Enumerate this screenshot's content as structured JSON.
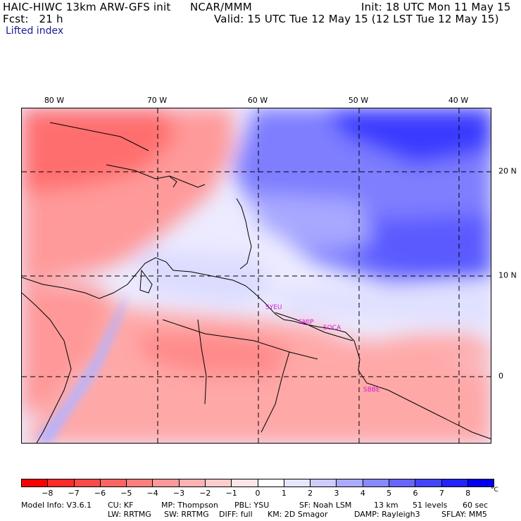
{
  "header": {
    "title": "HAIC-HIWC 13km ARW-GFS init",
    "org": "NCAR/MMM",
    "init": "Init: 18 UTC Mon 11 May 15",
    "fcst": "Fcst:   21 h",
    "valid": "Valid: 15 UTC Tue 12 May 15 (12 LST Tue 12 May 15)",
    "field": "Lifted index"
  },
  "map": {
    "lon_labels": [
      "80 W",
      "70 W",
      "60 W",
      "50 W",
      "40 W"
    ],
    "lat_labels": [
      "20 N",
      "10 N",
      "0"
    ],
    "stations": [
      "SYEU",
      "SMJP",
      "SOCA",
      "SBBE"
    ]
  },
  "colorbar": {
    "labels": [
      "-8",
      "-7",
      "-6",
      "-5",
      "-4",
      "-3",
      "-2",
      "-1",
      "0",
      "1",
      "2",
      "3",
      "4",
      "5",
      "6",
      "7",
      "8"
    ],
    "unit": "°C",
    "colors": [
      "#ff0000",
      "#ff2a2a",
      "#ff4848",
      "#ff6464",
      "#ff7e7e",
      "#ff9898",
      "#ffb2b2",
      "#ffcccc",
      "#ffe6e6",
      "#ffffff",
      "#e6e6ff",
      "#ccccff",
      "#aaaaff",
      "#8888ff",
      "#6666ff",
      "#4444ff",
      "#2222ff",
      "#0000ee"
    ]
  },
  "footer": {
    "line1": [
      "Model Info: V3.6.1",
      "CU: KF",
      "MP: Thompson",
      "PBL: YSU",
      "SF: Noah LSM",
      "13 km",
      "51 levels",
      "60 sec"
    ],
    "line2": [
      "LW: RRTMG",
      "SW: RRTMG",
      "DIFF: full",
      "KM: 2D Smagor",
      "DAMP: Rayleigh3",
      "SFLAY: MM5"
    ]
  }
}
